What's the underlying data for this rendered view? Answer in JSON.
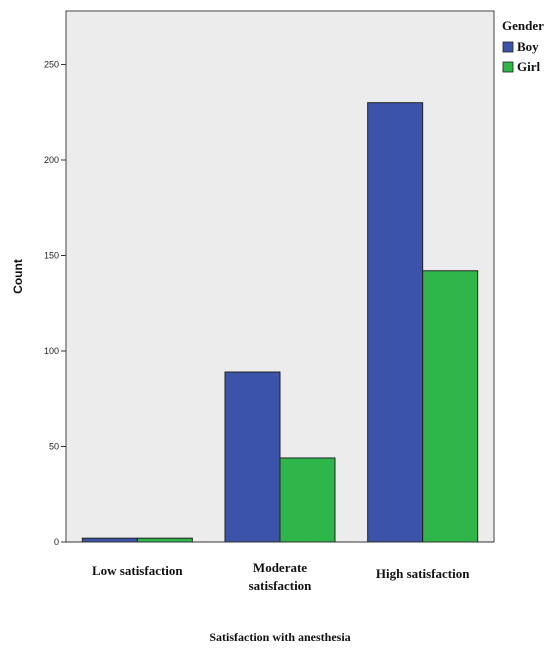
{
  "chart_data": {
    "type": "bar",
    "categories": [
      "Low satisfaction",
      "Moderate satisfaction",
      "High satisfaction"
    ],
    "category_label_lines": [
      [
        "Low satisfaction"
      ],
      [
        "Moderate",
        "satisfaction"
      ],
      [
        "High satisfaction"
      ]
    ],
    "series": [
      {
        "name": "Boy",
        "values": [
          2,
          89,
          230
        ],
        "color": "#3b53a8"
      },
      {
        "name": "Girl",
        "values": [
          2,
          44,
          142
        ],
        "color": "#2eb64a"
      }
    ],
    "xlabel": "Satisfaction with anesthesia",
    "ylabel": "Count",
    "ylim": [
      0,
      278
    ],
    "yticks": [
      0,
      50,
      100,
      150,
      200,
      250
    ],
    "legend": {
      "title": "Gender",
      "position": "right"
    },
    "plot_background": "#ececec",
    "grid": false
  }
}
